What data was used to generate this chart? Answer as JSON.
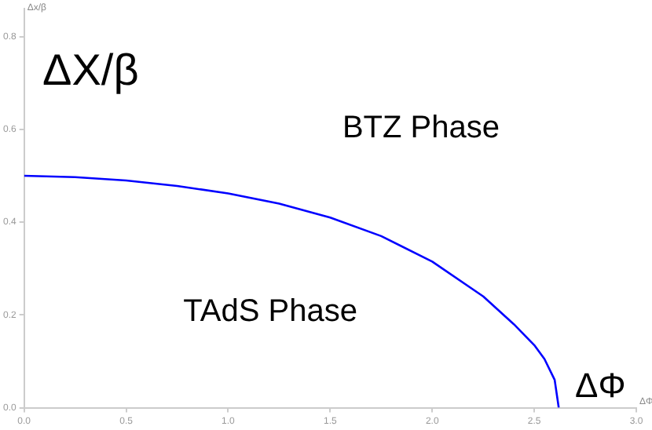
{
  "chart_data": {
    "type": "line",
    "xlabel": "ΔΦ",
    "ylabel": "Δx/β",
    "annotations": [
      "ΔX/β",
      "BTZ Phase",
      "TAdS Phase",
      "ΔΦ"
    ],
    "x": [
      0,
      0.25,
      0.5,
      0.75,
      1.0,
      1.25,
      1.5,
      1.75,
      2.0,
      2.25,
      2.4,
      2.5,
      2.55,
      2.6,
      2.62
    ],
    "series": [
      {
        "color": "#0000ff",
        "values": [
          0.5,
          0.497,
          0.49,
          0.478,
          0.462,
          0.44,
          0.41,
          0.37,
          0.315,
          0.24,
          0.18,
          0.135,
          0.105,
          0.06,
          0
        ]
      }
    ],
    "xlim": [
      0,
      3.0
    ],
    "ylim": [
      0,
      0.86
    ],
    "xticks": [
      {
        "value": 0,
        "label": "0.0"
      },
      0.5,
      {
        "value": 1,
        "label": "1.0"
      },
      1.5,
      {
        "value": 2,
        "label": "2.0"
      },
      2.5,
      {
        "value": 3,
        "label": "3.0"
      }
    ],
    "yticks": [
      {
        "value": 0,
        "label": "0.0"
      },
      0.2,
      0.4,
      0.6,
      0.8
    ],
    "grid": false,
    "legend": false,
    "marker": "none",
    "line_style": "solid"
  }
}
